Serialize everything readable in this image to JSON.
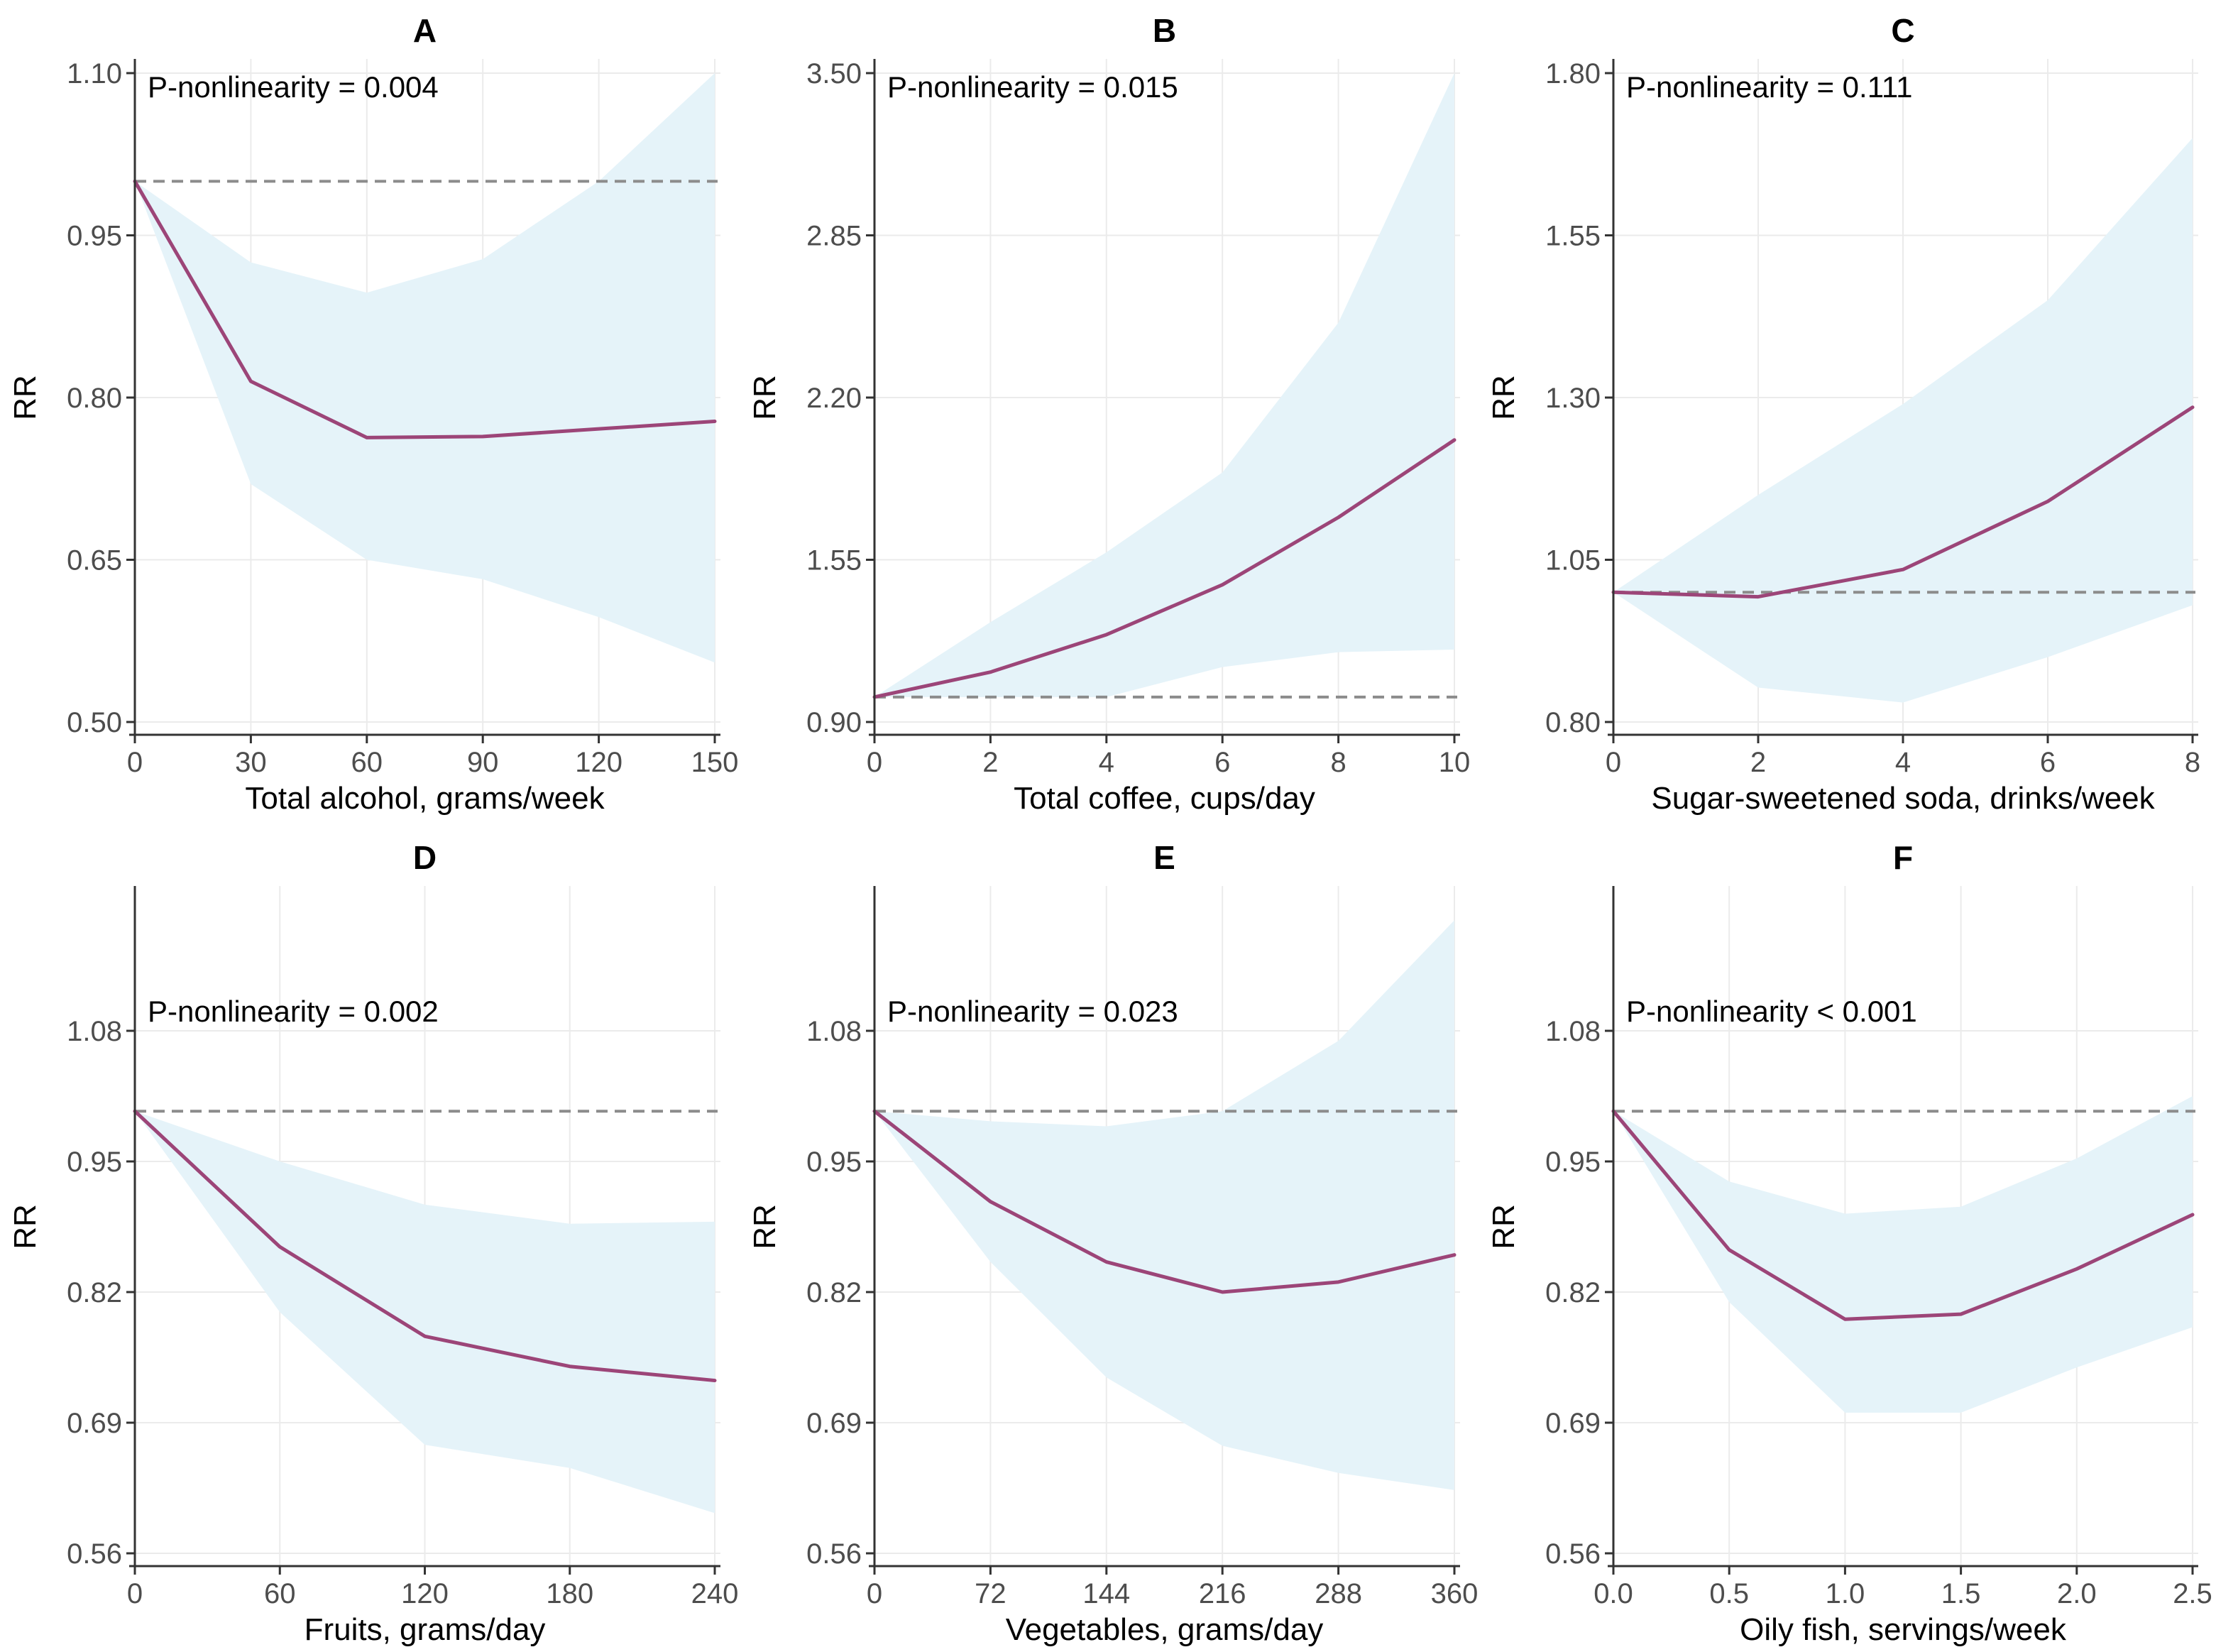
{
  "colors": {
    "curve": "#9c4578",
    "band": "#e5f3f9",
    "reference": "#8c8c8c",
    "grid": "#ebebeb",
    "axis": "#333333"
  },
  "chart_data": [
    {
      "type": "line",
      "panel": "A",
      "title": "A",
      "annotation": "P-nonlinearity = 0.004",
      "xlabel": "Total alcohol, grams/week",
      "ylabel": "RR",
      "xlim": [
        0,
        150
      ],
      "ylim": [
        0.5,
        1.1
      ],
      "xticks": [
        0,
        30,
        60,
        90,
        120,
        150
      ],
      "xtick_labels": [
        "0",
        "30",
        "60",
        "90",
        "120",
        "150"
      ],
      "yticks": [
        0.5,
        0.65,
        0.8,
        0.95,
        1.1
      ],
      "ytick_labels": [
        "0.50",
        "0.65",
        "0.80",
        "0.95",
        "1.10"
      ],
      "reference_line": 1.0,
      "series": [
        {
          "name": "RR",
          "x": [
            0,
            30,
            60,
            90,
            120,
            150
          ],
          "values": [
            1.0,
            0.815,
            0.763,
            0.764,
            0.771,
            0.778
          ]
        },
        {
          "name": "Upper 95% CI",
          "x": [
            0,
            30,
            60,
            90,
            120,
            150
          ],
          "values": [
            1.0,
            0.925,
            0.897,
            0.928,
            1.0,
            1.1
          ]
        },
        {
          "name": "Lower 95% CI",
          "x": [
            0,
            30,
            60,
            90,
            120,
            150
          ],
          "values": [
            1.0,
            0.72,
            0.65,
            0.632,
            0.597,
            0.555
          ]
        }
      ]
    },
    {
      "type": "line",
      "panel": "B",
      "title": "B",
      "annotation": "P-nonlinearity = 0.015",
      "xlabel": "Total coffee, cups/day",
      "ylabel": "RR",
      "xlim": [
        0,
        10
      ],
      "ylim": [
        0.9,
        3.5
      ],
      "xticks": [
        0,
        2,
        4,
        6,
        8,
        10
      ],
      "xtick_labels": [
        "0",
        "2",
        "4",
        "6",
        "8",
        "10"
      ],
      "yticks": [
        0.9,
        1.55,
        2.2,
        2.85,
        3.5
      ],
      "ytick_labels": [
        "0.90",
        "1.55",
        "2.20",
        "2.85",
        "3.50"
      ],
      "reference_line": 1.0,
      "series": [
        {
          "name": "RR",
          "x": [
            0,
            2,
            4,
            6,
            8,
            10
          ],
          "values": [
            1.0,
            1.1,
            1.25,
            1.45,
            1.72,
            2.03
          ]
        },
        {
          "name": "Upper 95% CI",
          "x": [
            0,
            2,
            4,
            6,
            8,
            10
          ],
          "values": [
            1.0,
            1.3,
            1.58,
            1.9,
            2.5,
            3.5
          ]
        },
        {
          "name": "Lower 95% CI",
          "x": [
            0,
            2,
            4,
            6,
            8,
            10
          ],
          "values": [
            1.0,
            1.0,
            1.0,
            1.12,
            1.18,
            1.19
          ]
        }
      ]
    },
    {
      "type": "line",
      "panel": "C",
      "title": "C",
      "annotation": "P-nonlinearity = 0.111",
      "xlabel": "Sugar-sweetened soda, drinks/week",
      "ylabel": "RR",
      "xlim": [
        0,
        8
      ],
      "ylim": [
        0.8,
        1.8
      ],
      "xticks": [
        0,
        2,
        4,
        6,
        8
      ],
      "xtick_labels": [
        "0",
        "2",
        "4",
        "6",
        "8"
      ],
      "yticks": [
        0.8,
        1.05,
        1.3,
        1.55,
        1.8
      ],
      "ytick_labels": [
        "0.80",
        "1.05",
        "1.30",
        "1.55",
        "1.80"
      ],
      "reference_line": 1.0,
      "series": [
        {
          "name": "RR",
          "x": [
            0,
            2,
            4,
            6,
            8
          ],
          "values": [
            1.0,
            0.993,
            1.035,
            1.14,
            1.285
          ]
        },
        {
          "name": "Upper 95% CI",
          "x": [
            0,
            2,
            4,
            6,
            8
          ],
          "values": [
            1.0,
            1.15,
            1.29,
            1.45,
            1.7
          ]
        },
        {
          "name": "Lower 95% CI",
          "x": [
            0,
            2,
            4,
            6,
            8
          ],
          "values": [
            1.0,
            0.853,
            0.83,
            0.9,
            0.98
          ]
        }
      ]
    },
    {
      "type": "line",
      "panel": "D",
      "title": "D",
      "annotation": "P-nonlinearity = 0.002",
      "xlabel": "Fruits, grams/day",
      "ylabel": "RR",
      "xlim": [
        0,
        240
      ],
      "ylim": [
        0.56,
        1.21
      ],
      "xticks": [
        0,
        60,
        120,
        180,
        240
      ],
      "xtick_labels": [
        "0",
        "60",
        "120",
        "180",
        "240"
      ],
      "yticks": [
        0.56,
        0.69,
        0.82,
        0.95,
        1.08
      ],
      "ytick_labels": [
        "0.56",
        "0.69",
        "0.82",
        "0.95",
        "1.08"
      ],
      "reference_line": 1.0,
      "series": [
        {
          "name": "RR",
          "x": [
            0,
            60,
            120,
            180,
            240
          ],
          "values": [
            1.0,
            0.865,
            0.776,
            0.746,
            0.732
          ]
        },
        {
          "name": "Upper 95% CI",
          "x": [
            0,
            60,
            120,
            180,
            240
          ],
          "values": [
            1.0,
            0.95,
            0.907,
            0.888,
            0.89
          ]
        },
        {
          "name": "Lower 95% CI",
          "x": [
            0,
            60,
            120,
            180,
            240
          ],
          "values": [
            1.0,
            0.8,
            0.668,
            0.645,
            0.6
          ]
        }
      ]
    },
    {
      "type": "line",
      "panel": "E",
      "title": "E",
      "annotation": "P-nonlinearity = 0.023",
      "xlabel": "Vegetables, grams/day",
      "ylabel": "RR",
      "xlim": [
        0,
        360
      ],
      "ylim": [
        0.56,
        1.21
      ],
      "xticks": [
        0,
        72,
        144,
        216,
        288,
        360
      ],
      "xtick_labels": [
        "0",
        "72",
        "144",
        "216",
        "288",
        "360"
      ],
      "yticks": [
        0.56,
        0.69,
        0.82,
        0.95,
        1.08
      ],
      "ytick_labels": [
        "0.56",
        "0.69",
        "0.82",
        "0.95",
        "1.08"
      ],
      "reference_line": 1.0,
      "series": [
        {
          "name": "RR",
          "x": [
            0,
            72,
            144,
            216,
            288,
            360
          ],
          "values": [
            1.0,
            0.91,
            0.85,
            0.82,
            0.83,
            0.857
          ]
        },
        {
          "name": "Upper 95% CI",
          "x": [
            0,
            72,
            144,
            216,
            288,
            360
          ],
          "values": [
            1.0,
            0.99,
            0.985,
            1.0,
            1.07,
            1.19
          ]
        },
        {
          "name": "Lower 95% CI",
          "x": [
            0,
            72,
            144,
            216,
            288,
            360
          ],
          "values": [
            1.0,
            0.85,
            0.735,
            0.667,
            0.64,
            0.623
          ]
        }
      ]
    },
    {
      "type": "line",
      "panel": "F",
      "title": "F",
      "annotation": "P-nonlinearity < 0.001",
      "xlabel": "Oily fish, servings/week",
      "ylabel": "RR",
      "xlim": [
        0,
        2.5
      ],
      "ylim": [
        0.56,
        1.21
      ],
      "xticks": [
        0,
        0.5,
        1,
        1.5,
        2,
        2.5
      ],
      "xtick_labels": [
        "0.0",
        "0.5",
        "1.0",
        "1.5",
        "2.0",
        "2.5"
      ],
      "yticks": [
        0.56,
        0.69,
        0.82,
        0.95,
        1.08
      ],
      "ytick_labels": [
        "0.56",
        "0.69",
        "0.82",
        "0.95",
        "1.08"
      ],
      "reference_line": 1.0,
      "series": [
        {
          "name": "RR",
          "x": [
            0,
            0.5,
            1,
            1.5,
            2,
            2.5
          ],
          "values": [
            1.0,
            0.862,
            0.793,
            0.798,
            0.843,
            0.897
          ]
        },
        {
          "name": "Upper 95% CI",
          "x": [
            0,
            0.5,
            1,
            1.5,
            2,
            2.5
          ],
          "values": [
            1.0,
            0.93,
            0.898,
            0.905,
            0.953,
            1.015
          ]
        },
        {
          "name": "Lower 95% CI",
          "x": [
            0,
            0.5,
            1,
            1.5,
            2,
            2.5
          ],
          "values": [
            1.0,
            0.81,
            0.7,
            0.7,
            0.745,
            0.785
          ]
        }
      ]
    }
  ]
}
